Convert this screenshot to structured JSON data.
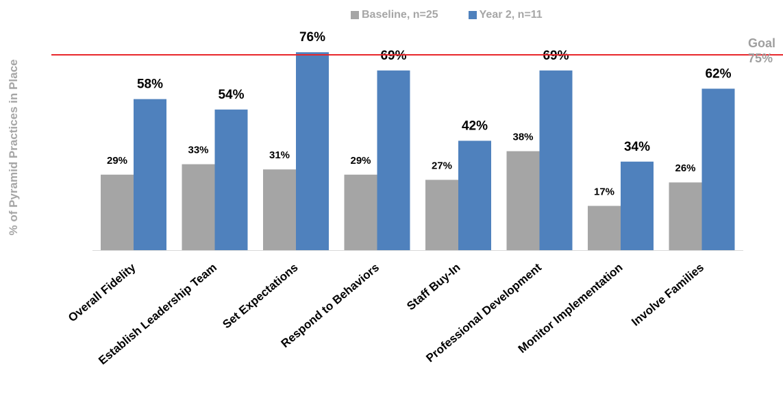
{
  "legend": {
    "baseline_label": "Baseline, n=25",
    "year2_label": "Year 2, n=11"
  },
  "goal": {
    "label": "Goal",
    "value_label": "75%"
  },
  "colors": {
    "baseline": "#a5a5a5",
    "year2": "#4f81bd",
    "goal_line": "#e8262a",
    "text": "#000000",
    "muted": "#a6a6a6"
  },
  "chart_data": {
    "type": "bar",
    "ylabel": "% of Pyramid Practices in Place",
    "ylim": [
      0,
      76
    ],
    "goal": 75,
    "grid": false,
    "legend_position": "top",
    "categories": [
      "Overall Fidelity",
      "Establish Leadership Team",
      "Set Expectations",
      "Respond to Behaviors",
      "Staff Buy-In",
      "Professional Development",
      "Monitor Implementation",
      "Involve Families"
    ],
    "series": [
      {
        "name": "Baseline, n=25",
        "values": [
          29,
          33,
          31,
          29,
          27,
          38,
          17,
          26
        ],
        "labels": [
          "29%",
          "33%",
          "31%",
          "29%",
          "27%",
          "38%",
          "17%",
          "26%"
        ]
      },
      {
        "name": "Year 2, n=11",
        "values": [
          58,
          54,
          76,
          69,
          42,
          69,
          34,
          62
        ],
        "labels": [
          "58%",
          "54%",
          "76%",
          "69%",
          "42%",
          "69%",
          "34%",
          "62%"
        ]
      }
    ]
  }
}
